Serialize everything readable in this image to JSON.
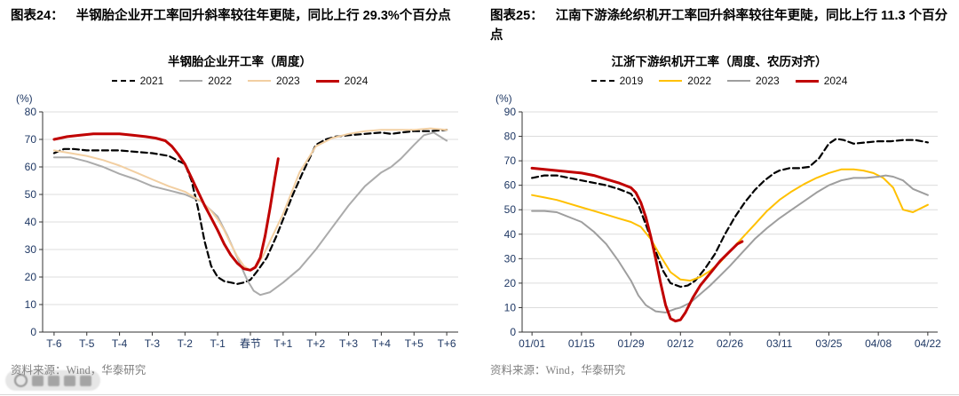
{
  "figures": [
    {
      "tag": "图表24：",
      "heading": "半钢胎企业开工率回升斜率较往年更陡，同比上行 29.3%个百分点",
      "source": "资料来源：Wind，华泰研究"
    },
    {
      "tag": "图表25：",
      "heading": "江南下游涤纶织机开工率回升斜率较往年更陡，同比上行 11.3 个百分点",
      "source": "资料来源：Wind，华泰研究"
    }
  ],
  "chart_data": [
    {
      "type": "line",
      "title": "半钢胎企业开工率（周度）",
      "xlabel": "",
      "ylabel": "(%)",
      "ylim": [
        0,
        80
      ],
      "yticks": [
        0,
        10,
        20,
        30,
        40,
        50,
        60,
        70,
        80
      ],
      "xlim": [
        -6.35,
        6.35
      ],
      "grid": true,
      "legend_position": "top",
      "grid_color": "#dcdcdc",
      "axis_color": "#333333",
      "tick_color": "#1F3864",
      "xticks": [
        {
          "v": -6,
          "label": "T-6"
        },
        {
          "v": -5,
          "label": "T-5"
        },
        {
          "v": -4,
          "label": "T-4"
        },
        {
          "v": -3,
          "label": "T-3"
        },
        {
          "v": -2,
          "label": "T-2"
        },
        {
          "v": -1,
          "label": "T-1"
        },
        {
          "v": 0,
          "label": "春节"
        },
        {
          "v": 1,
          "label": "T+1"
        },
        {
          "v": 2,
          "label": "T+2"
        },
        {
          "v": 3,
          "label": "T+3"
        },
        {
          "v": 4,
          "label": "T+4"
        },
        {
          "v": 5,
          "label": "T+5"
        },
        {
          "v": 6,
          "label": "T+6"
        }
      ],
      "series": [
        {
          "name": "2021",
          "color": "#000000",
          "width": 2.2,
          "dash": "7 4",
          "x": [
            -6,
            -5.7,
            -5.4,
            -5,
            -4.5,
            -4,
            -3.5,
            -3,
            -2.5,
            -2,
            -1.8,
            -1.6,
            -1.4,
            -1.2,
            -1,
            -0.8,
            -0.6,
            -0.4,
            -0.2,
            0,
            0.2,
            0.5,
            0.8,
            1,
            1.3,
            1.6,
            2,
            2.3,
            2.6,
            3,
            3.5,
            4,
            4.3,
            4.6,
            5,
            5.5,
            6
          ],
          "y": [
            65,
            66.5,
            66.5,
            66,
            66,
            66,
            65.5,
            65,
            64,
            61,
            55,
            45,
            33,
            24,
            20,
            18.5,
            18,
            17.5,
            18,
            19,
            22,
            27,
            35,
            41,
            50,
            58,
            68,
            70,
            71,
            71.5,
            72,
            72.5,
            72,
            72.5,
            73,
            73,
            73.5
          ]
        },
        {
          "name": "2022",
          "color": "#ABABAB",
          "width": 2,
          "x": [
            -6,
            -5.5,
            -5,
            -4.5,
            -4,
            -3.5,
            -3,
            -2.5,
            -2,
            -1.5,
            -1,
            -0.7,
            -0.4,
            -0.1,
            0.1,
            0.3,
            0.6,
            1,
            1.5,
            2,
            2.5,
            3,
            3.5,
            4,
            4.3,
            4.6,
            5,
            5.3,
            5.6,
            6
          ],
          "y": [
            63.5,
            63.5,
            62,
            60,
            57.5,
            55.5,
            53,
            51.5,
            50,
            47.5,
            42,
            35,
            27,
            19,
            15,
            13.5,
            14.5,
            18,
            23,
            30,
            38,
            46,
            53,
            58,
            60,
            63,
            68,
            71.5,
            72.5,
            69.5
          ]
        },
        {
          "name": "2023",
          "color": "#F2CFA2",
          "width": 2,
          "x": [
            -6,
            -5.5,
            -5,
            -4.5,
            -4,
            -3.5,
            -3,
            -2.5,
            -2,
            -1.5,
            -1.2,
            -1,
            -0.8,
            -0.6,
            -0.4,
            -0.2,
            0,
            0.2,
            0.4,
            0.6,
            0.8,
            1,
            1.2,
            1.5,
            2,
            2.5,
            3,
            3.5,
            4,
            4.5,
            5,
            5.5,
            6
          ],
          "y": [
            66,
            65,
            64,
            62.5,
            60.5,
            58,
            55.5,
            53,
            51,
            47.5,
            44,
            41,
            37,
            32,
            27.5,
            24,
            22.5,
            24,
            28,
            33,
            38,
            43,
            49,
            58,
            67.5,
            70.5,
            72,
            73,
            73.5,
            73.5,
            73.5,
            74,
            73.5
          ]
        },
        {
          "name": "2024",
          "color": "#C00000",
          "width": 3,
          "x": [
            -6,
            -5.6,
            -5.2,
            -4.8,
            -4.4,
            -4,
            -3.6,
            -3.2,
            -2.9,
            -2.6,
            -2.4,
            -2.2,
            -2,
            -1.8,
            -1.6,
            -1.4,
            -1.2,
            -1,
            -0.8,
            -0.6,
            -0.4,
            -0.2,
            0,
            0.15,
            0.3,
            0.45,
            0.6,
            0.75,
            0.85
          ],
          "y": [
            70,
            71,
            71.5,
            72,
            72,
            72,
            71.5,
            71,
            70.5,
            69.5,
            67.5,
            64.5,
            61,
            56,
            51,
            46,
            41.5,
            37,
            32,
            28,
            25,
            23,
            22.5,
            23.5,
            27,
            35,
            45,
            56,
            63
          ]
        }
      ]
    },
    {
      "type": "line",
      "title": "江浙下游织机开工率（周度、农历对齐）",
      "xlabel": "",
      "ylabel": "(%)",
      "ylim": [
        0,
        90
      ],
      "yticks": [
        0,
        10,
        20,
        30,
        40,
        50,
        60,
        70,
        80,
        90
      ],
      "xlim": [
        -0.4,
        16.4
      ],
      "grid": true,
      "legend_position": "top",
      "grid_color": "#dcdcdc",
      "axis_color": "#333333",
      "tick_color": "#1F3864",
      "xticks": [
        {
          "v": 0,
          "label": "01/01"
        },
        {
          "v": 2,
          "label": "01/15"
        },
        {
          "v": 4,
          "label": "01/29"
        },
        {
          "v": 6,
          "label": "02/12"
        },
        {
          "v": 8,
          "label": "02/26"
        },
        {
          "v": 10,
          "label": "03/11"
        },
        {
          "v": 12,
          "label": "03/25"
        },
        {
          "v": 14,
          "label": "04/08"
        },
        {
          "v": 16,
          "label": "04/22"
        }
      ],
      "series": [
        {
          "name": "2019",
          "color": "#000000",
          "width": 2.2,
          "dash": "7 4",
          "x": [
            0,
            0.5,
            1,
            1.5,
            2,
            2.5,
            3,
            3.5,
            4,
            4.3,
            4.6,
            5,
            5.3,
            5.6,
            6,
            6.3,
            6.6,
            7,
            7.4,
            7.8,
            8.2,
            8.6,
            9,
            9.4,
            9.8,
            10,
            10.4,
            10.8,
            11.2,
            11.6,
            12,
            12.3,
            12.6,
            13,
            13.5,
            14,
            14.5,
            15,
            15.5,
            16
          ],
          "y": [
            63,
            64,
            64,
            63,
            62,
            61,
            60,
            58.5,
            56.5,
            52,
            44,
            33,
            25,
            20,
            18.5,
            19,
            21,
            26,
            32,
            40,
            47,
            53,
            58,
            62,
            65,
            66,
            67,
            67,
            67.5,
            71,
            77,
            79,
            78.5,
            77,
            77.5,
            78,
            78,
            78.5,
            78.5,
            77.5
          ]
        },
        {
          "name": "2022",
          "color": "#FFC000",
          "width": 2,
          "x": [
            0,
            0.5,
            1,
            1.5,
            2,
            2.5,
            3,
            3.5,
            4,
            4.4,
            4.8,
            5.2,
            5.6,
            6,
            6.4,
            6.8,
            7.2,
            7.6,
            8,
            8.5,
            9,
            9.5,
            10,
            10.5,
            11,
            11.5,
            12,
            12.5,
            13,
            13.4,
            13.8,
            14.2,
            14.6,
            15,
            15.4,
            16
          ],
          "y": [
            56,
            55,
            54,
            52.5,
            51,
            49.5,
            48,
            46.5,
            45,
            43,
            38,
            31,
            24.5,
            21.5,
            21,
            22.5,
            25,
            28.5,
            33,
            38.5,
            44,
            49.5,
            54,
            57.5,
            60.5,
            63,
            65,
            66.5,
            66.5,
            66,
            65,
            63,
            59,
            50,
            49,
            52
          ]
        },
        {
          "name": "2023",
          "color": "#9E9E9E",
          "width": 2,
          "x": [
            0,
            0.5,
            1,
            1.5,
            2,
            2.5,
            3,
            3.5,
            4,
            4.3,
            4.6,
            5,
            5.4,
            5.8,
            6,
            6.4,
            6.8,
            7.2,
            7.6,
            8,
            8.5,
            9,
            9.5,
            10,
            10.5,
            11,
            11.5,
            12,
            12.5,
            13,
            13.5,
            14,
            14.3,
            14.6,
            15,
            15.4,
            16
          ],
          "y": [
            49.5,
            49.5,
            49,
            47,
            45,
            41,
            36,
            29,
            21,
            15,
            11,
            8.5,
            8,
            9.5,
            10,
            12,
            15.5,
            19,
            23,
            27,
            32.5,
            38,
            42.5,
            46.5,
            50,
            53.5,
            57,
            60,
            62,
            63,
            63,
            63.5,
            64,
            63.5,
            62,
            58.5,
            56
          ]
        },
        {
          "name": "2024",
          "color": "#C00000",
          "width": 3,
          "x": [
            0,
            0.5,
            1,
            1.5,
            2,
            2.5,
            3,
            3.5,
            4,
            4.2,
            4.4,
            4.6,
            4.8,
            5,
            5.2,
            5.4,
            5.6,
            5.8,
            6,
            6.2,
            6.5,
            6.8,
            7.2,
            7.6,
            8,
            8.3,
            8.5
          ],
          "y": [
            67,
            66.5,
            66,
            65.5,
            65,
            64,
            62.5,
            61,
            59,
            57,
            53,
            47,
            39,
            30,
            20,
            11,
            5.5,
            4.5,
            5,
            8,
            14,
            19,
            24,
            29,
            33,
            36,
            37
          ]
        }
      ]
    }
  ]
}
